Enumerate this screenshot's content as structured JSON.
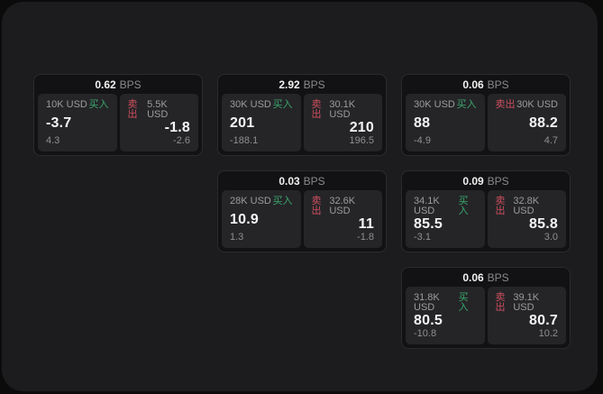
{
  "labels": {
    "buy": "买入",
    "sell": "卖出",
    "bps_unit": "BPS"
  },
  "colors": {
    "buy_green": "#3aa76d",
    "sell_red": "#cf4f5e",
    "window_bg": "#1c1c1e",
    "card_bg": "#121214",
    "pane_bg": "#252528",
    "outer_bg": "#0b0b0c"
  },
  "cards": [
    {
      "bps_value": "0.62",
      "buy": {
        "amount": "10K USD",
        "price": "-3.7",
        "delta": "4.3"
      },
      "sell": {
        "amount": "5.5K USD",
        "price": "-1.8",
        "delta": "-2.6"
      }
    },
    {
      "bps_value": "2.92",
      "buy": {
        "amount": "30K USD",
        "price": "201",
        "delta": "-188.1"
      },
      "sell": {
        "amount": "30.1K USD",
        "price": "210",
        "delta": "196.5"
      }
    },
    {
      "bps_value": "0.06",
      "buy": {
        "amount": "30K USD",
        "price": "88",
        "delta": "-4.9"
      },
      "sell": {
        "amount": "30K USD",
        "price": "88.2",
        "delta": "4.7"
      }
    },
    {
      "bps_value": "0.03",
      "buy": {
        "amount": "28K USD",
        "price": "10.9",
        "delta": "1.3"
      },
      "sell": {
        "amount": "32.6K USD",
        "price": "11",
        "delta": "-1.8"
      }
    },
    {
      "bps_value": "0.09",
      "buy": {
        "amount": "34.1K USD",
        "price": "85.5",
        "delta": "-3.1"
      },
      "sell": {
        "amount": "32.8K USD",
        "price": "85.8",
        "delta": "3.0"
      }
    },
    {
      "bps_value": "0.06",
      "buy": {
        "amount": "31.8K USD",
        "price": "80.5",
        "delta": "-10.8"
      },
      "sell": {
        "amount": "39.1K USD",
        "price": "80.7",
        "delta": "10.2"
      }
    }
  ]
}
